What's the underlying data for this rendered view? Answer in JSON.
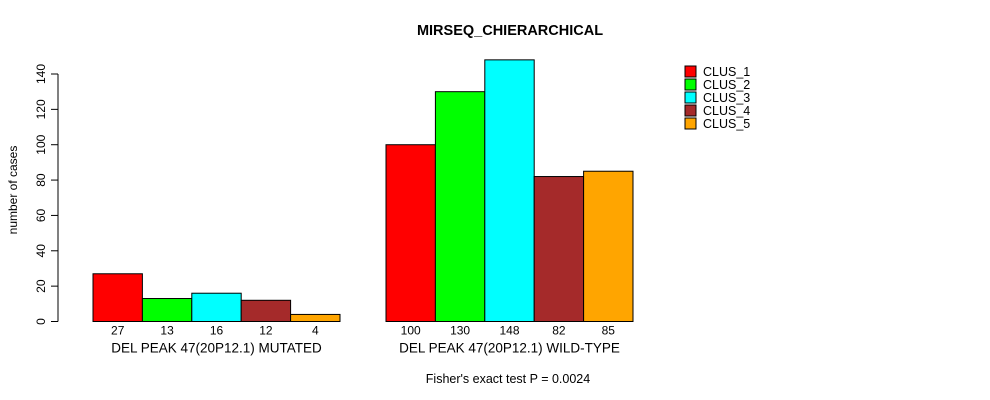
{
  "page": {
    "background_color": "#FFFFFF"
  },
  "chart_data": {
    "type": "bar",
    "title": "MIRSEQ_CHIERARCHICAL",
    "ylabel": "number of cases",
    "xlabel": "",
    "annotation": "Fisher's exact test P = 0.0024",
    "ylim": [
      0,
      140
    ],
    "yticks": [
      0,
      20,
      40,
      60,
      80,
      100,
      120,
      140
    ],
    "grid": false,
    "legend_position": "top-right",
    "bar_border_color": "#000000",
    "axis_color": "#000000",
    "categories": [
      "DEL PEAK 47(20P12.1) MUTATED",
      "DEL PEAK 47(20P12.1) WILD-TYPE"
    ],
    "series": [
      {
        "name": "CLUS_1",
        "color": "#FF0000",
        "values": [
          27,
          100
        ]
      },
      {
        "name": "CLUS_2",
        "color": "#00FF00",
        "values": [
          13,
          130
        ]
      },
      {
        "name": "CLUS_3",
        "color": "#00FFFF",
        "values": [
          16,
          148
        ]
      },
      {
        "name": "CLUS_4",
        "color": "#A52A2A",
        "values": [
          12,
          82
        ]
      },
      {
        "name": "CLUS_5",
        "color": "#FFA500",
        "values": [
          4,
          85
        ]
      }
    ],
    "bar_value_labels": [
      [
        "27",
        "13",
        "16",
        "12",
        "4"
      ],
      [
        "100",
        "130",
        "148",
        "82",
        "85"
      ]
    ],
    "value_labels_shown": true
  }
}
